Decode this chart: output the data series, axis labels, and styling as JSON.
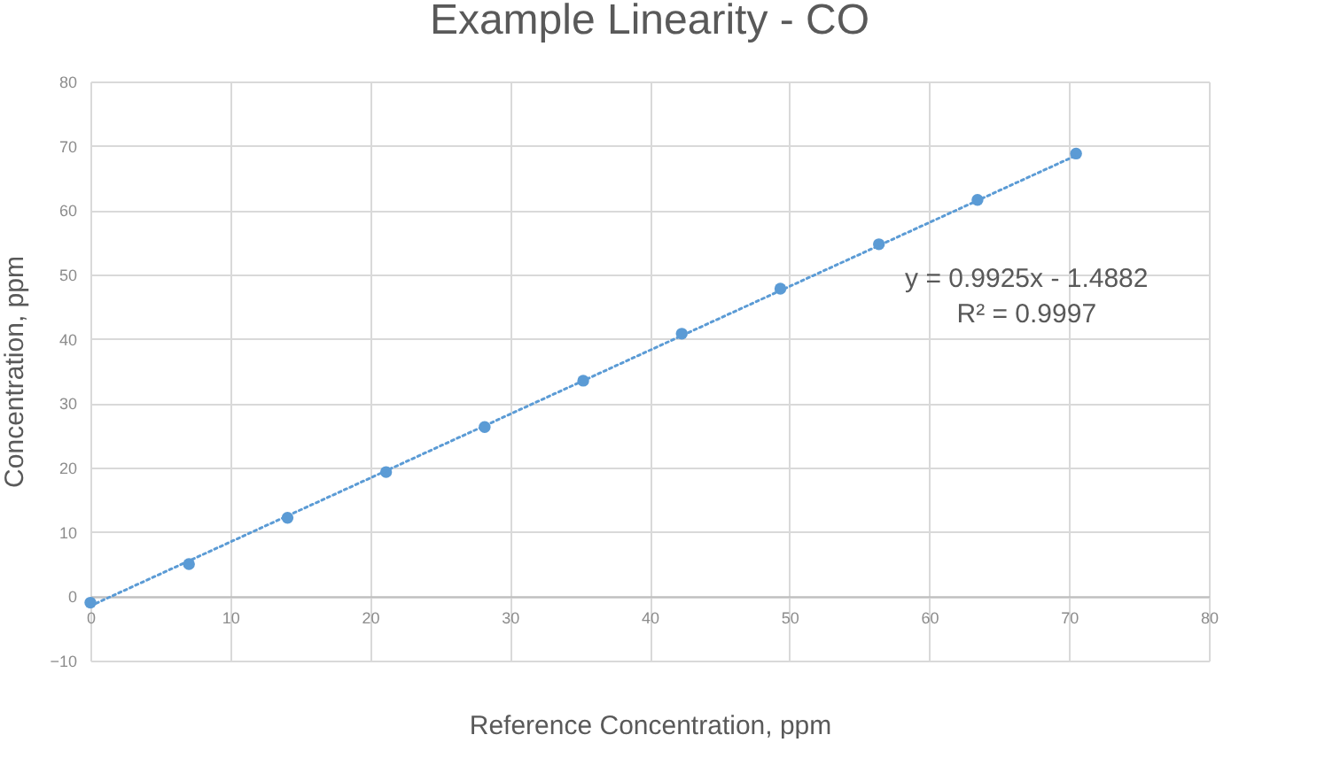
{
  "chart_data": {
    "type": "scatter",
    "title": "Example Linearity - CO",
    "xlabel": "Reference Concentration, ppm",
    "ylabel": "Concentration, ppm",
    "annotations": [
      "y = 0.9925x - 1.4882",
      "R² = 0.9997"
    ],
    "xlim": [
      0,
      80
    ],
    "xticks": [
      0,
      10,
      20,
      30,
      40,
      50,
      60,
      70,
      80
    ],
    "ylim": [
      -10,
      80
    ],
    "yticks": [
      -10,
      0,
      10,
      20,
      30,
      40,
      50,
      60,
      70,
      80
    ],
    "grid": true,
    "marker": "circle",
    "series": [
      {
        "color": "#5b9bd5",
        "x": [
          0,
          7.05,
          14.1,
          21.15,
          28.2,
          35.25,
          42.3,
          49.35,
          56.4,
          63.45,
          70.5
        ],
        "values": [
          -1,
          5,
          12.2,
          19.3,
          26.3,
          33.5,
          40.8,
          47.8,
          54.7,
          61.6,
          68.8
        ]
      },
      {
        "type": "line",
        "color": "#5b9bd5",
        "line_style": "dotted",
        "marker": "none",
        "x": [
          0,
          70.5
        ],
        "values": [
          -1.5,
          68.5
        ]
      }
    ]
  }
}
